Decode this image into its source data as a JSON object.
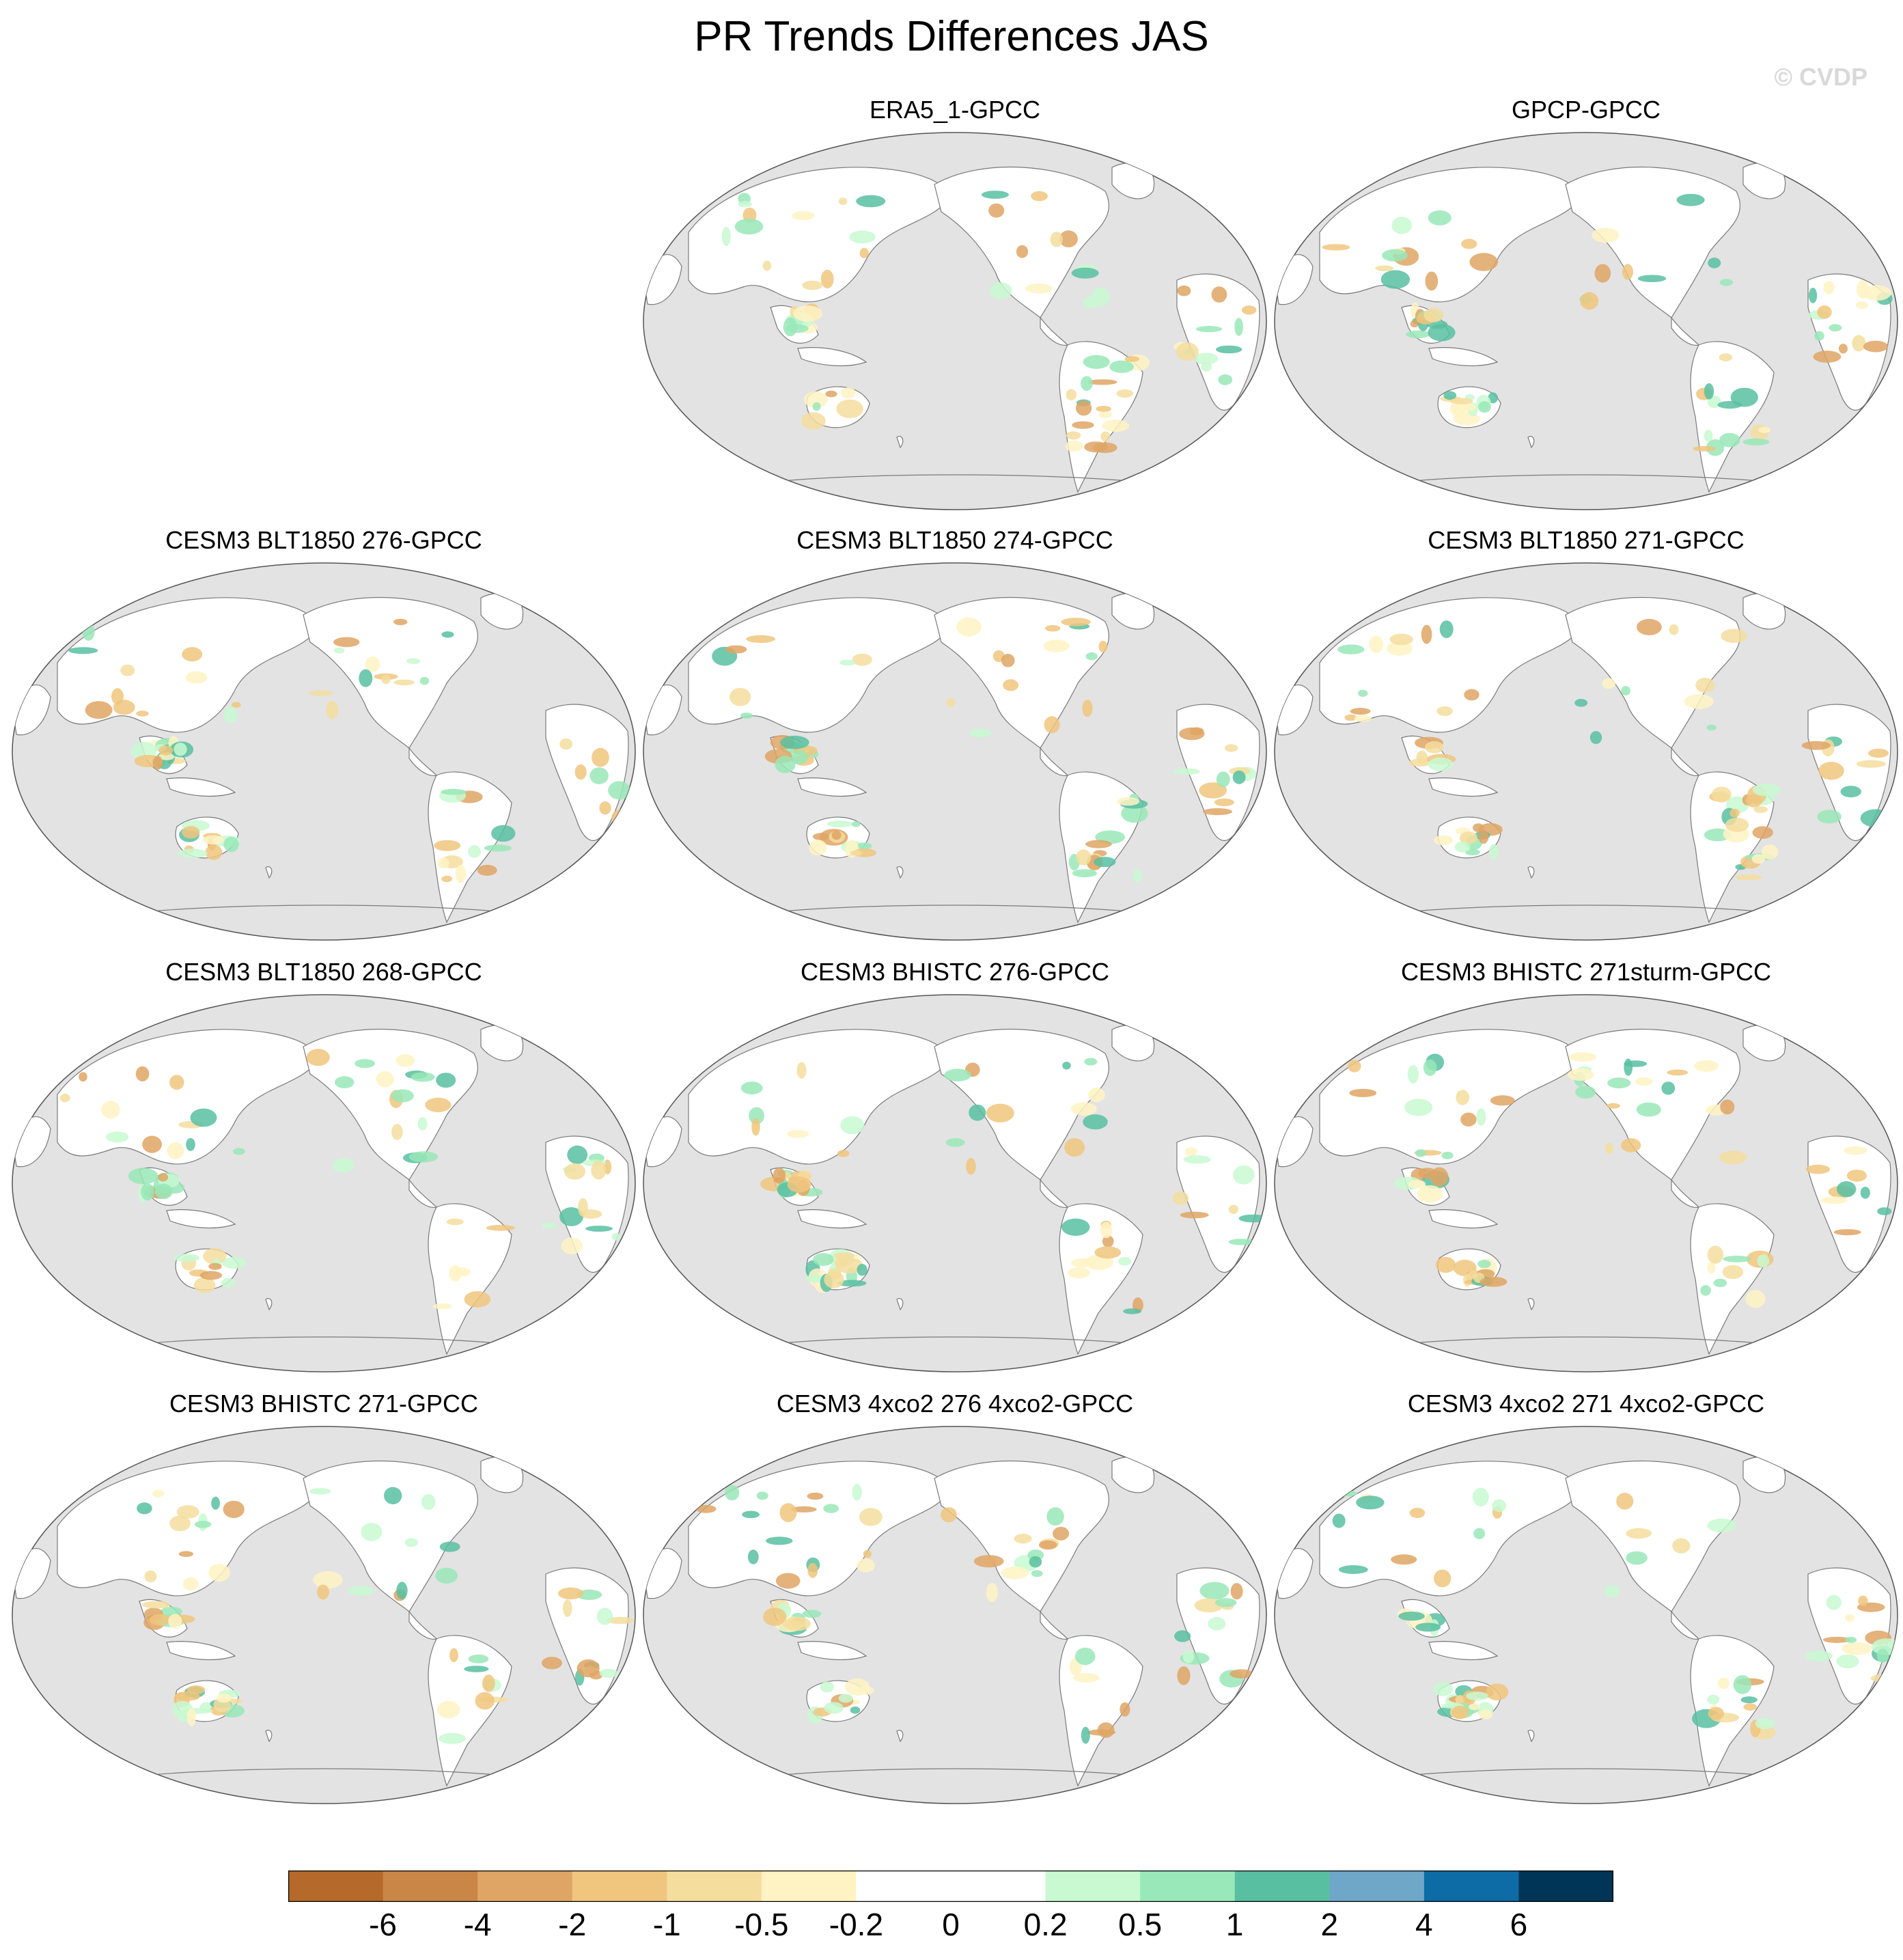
{
  "title": "PR Trends Differences JAS",
  "watermark": "© CVDP",
  "panels": [
    {
      "label": "ERA5_1-GPCC"
    },
    {
      "label": "GPCP-GPCC"
    },
    {
      "label": "CESM3 BLT1850 276-GPCC"
    },
    {
      "label": "CESM3 BLT1850 274-GPCC"
    },
    {
      "label": "CESM3 BLT1850 271-GPCC"
    },
    {
      "label": "CESM3 BLT1850 268-GPCC"
    },
    {
      "label": "CESM3 BHISTC 276-GPCC"
    },
    {
      "label": "CESM3 BHISTC 271sturm-GPCC"
    },
    {
      "label": "CESM3 BHISTC 271-GPCC"
    },
    {
      "label": "CESM3 4xco2 276 4xco2-GPCC"
    },
    {
      "label": "CESM3 4xco2 271 4xco2-GPCC"
    }
  ],
  "colorbar": {
    "colors": [
      "#b5692b",
      "#c98646",
      "#dfa564",
      "#f0c57e",
      "#f5dd9d",
      "#fff3c4",
      "#ffffff",
      "#ffffff",
      "#c8f9d1",
      "#99e8b9",
      "#58c0a1",
      "#6fa7c9",
      "#0d6ba6",
      "#003557"
    ],
    "labels": [
      "-6",
      "-4",
      "-2",
      "-1",
      "-0.5",
      "-0.2",
      "0",
      "0.2",
      "0.5",
      "1",
      "2",
      "4",
      "6"
    ]
  },
  "map_style": {
    "ocean": "#e3e3e3",
    "land": "#ffffff",
    "coast": "#7a7a7a"
  }
}
